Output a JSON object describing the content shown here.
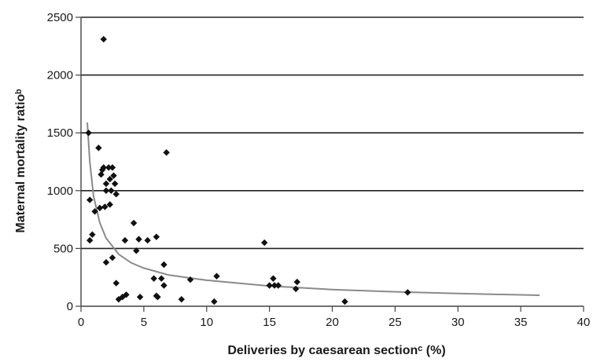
{
  "chart_data": {
    "type": "scatter",
    "title": "",
    "xlabel": "Deliveries by caesarean sectionᶜ (%)",
    "ylabel": "Maternal mortality ratioᵇ",
    "xlim": [
      0,
      40
    ],
    "ylim": [
      0,
      2500
    ],
    "xticks": [
      "0",
      "5",
      "10",
      "15",
      "20",
      "25",
      "30",
      "35",
      "40"
    ],
    "yticks": [
      "0",
      "500",
      "1000",
      "1500",
      "2000",
      "2500"
    ],
    "grid": "horizontal",
    "legend": "none",
    "colors": {
      "points": "#111111",
      "trend": "#8a8a8a",
      "grid": "#222222",
      "axis": "#444444"
    },
    "series": [
      {
        "marker": "diamond",
        "points": [
          [
            0.6,
            1500
          ],
          [
            0.7,
            920
          ],
          [
            0.7,
            570
          ],
          [
            0.9,
            620
          ],
          [
            1.1,
            820
          ],
          [
            1.4,
            1370
          ],
          [
            1.5,
            850
          ],
          [
            1.6,
            1140
          ],
          [
            1.7,
            1180
          ],
          [
            1.8,
            2310
          ],
          [
            1.8,
            1200
          ],
          [
            1.9,
            860
          ],
          [
            2.0,
            1060
          ],
          [
            2.0,
            1000
          ],
          [
            2.0,
            380
          ],
          [
            2.2,
            1200
          ],
          [
            2.3,
            1100
          ],
          [
            2.3,
            880
          ],
          [
            2.4,
            1000
          ],
          [
            2.5,
            1200
          ],
          [
            2.5,
            420
          ],
          [
            2.6,
            1130
          ],
          [
            2.7,
            1060
          ],
          [
            2.8,
            970
          ],
          [
            2.8,
            200
          ],
          [
            3.0,
            60
          ],
          [
            3.3,
            80
          ],
          [
            3.5,
            570
          ],
          [
            3.6,
            100
          ],
          [
            4.2,
            720
          ],
          [
            4.4,
            480
          ],
          [
            4.6,
            580
          ],
          [
            4.7,
            80
          ],
          [
            5.3,
            570
          ],
          [
            5.8,
            240
          ],
          [
            6.0,
            600
          ],
          [
            6.0,
            90
          ],
          [
            6.1,
            80
          ],
          [
            6.4,
            240
          ],
          [
            6.6,
            180
          ],
          [
            6.6,
            360
          ],
          [
            6.8,
            1330
          ],
          [
            8.0,
            60
          ],
          [
            8.7,
            230
          ],
          [
            10.6,
            40
          ],
          [
            10.8,
            260
          ],
          [
            14.6,
            550
          ],
          [
            15.0,
            180
          ],
          [
            15.3,
            240
          ],
          [
            15.4,
            180
          ],
          [
            15.7,
            180
          ],
          [
            17.1,
            150
          ],
          [
            17.2,
            210
          ],
          [
            21.0,
            40
          ],
          [
            26.0,
            120
          ]
        ]
      },
      {
        "kind": "trendline",
        "points": [
          [
            0.5,
            1590
          ],
          [
            0.7,
            1250
          ],
          [
            1.0,
            950
          ],
          [
            1.5,
            720
          ],
          [
            2,
            590
          ],
          [
            3,
            450
          ],
          [
            4,
            375
          ],
          [
            5,
            330
          ],
          [
            7,
            270
          ],
          [
            10,
            225
          ],
          [
            15,
            175
          ],
          [
            20,
            145
          ],
          [
            25,
            125
          ],
          [
            30,
            110
          ],
          [
            36.5,
            95
          ]
        ]
      }
    ]
  }
}
